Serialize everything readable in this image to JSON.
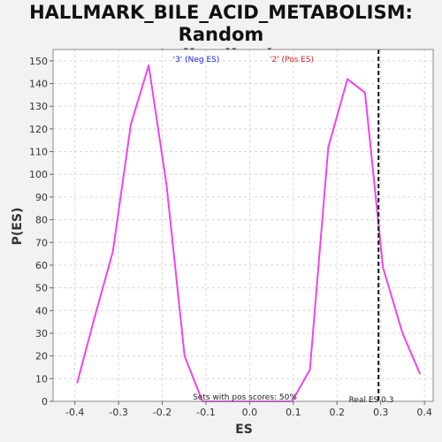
{
  "chart_data": {
    "type": "line",
    "title": "HALLMARK_BILE_ACID_METABOLISM: Random\nES distribution",
    "xlabel": "ES",
    "ylabel": "P(ES)",
    "xlim": [
      -0.45,
      0.42
    ],
    "ylim": [
      0,
      155
    ],
    "xticks": [
      -0.4,
      -0.3,
      -0.2,
      -0.1,
      0.0,
      0.1,
      0.2,
      0.3,
      0.4
    ],
    "xtick_labels": [
      "-0.4",
      "-0.3",
      "-0.2",
      "-0.1",
      "0.0",
      "0.1",
      "0.2",
      "0.3",
      "0.4"
    ],
    "yticks": [
      0,
      10,
      20,
      30,
      40,
      50,
      60,
      70,
      80,
      90,
      100,
      110,
      120,
      130,
      140,
      150
    ],
    "grid": true,
    "series": [
      {
        "color": "#ee44ee",
        "x": [
          -0.395,
          -0.355,
          -0.313,
          -0.272,
          -0.231,
          -0.19,
          -0.149,
          -0.108,
          -0.067,
          -0.026,
          0.015,
          0.056,
          0.097,
          0.138,
          0.18,
          0.224,
          0.264,
          0.305,
          0.35,
          0.39
        ],
        "y": [
          8,
          37,
          66,
          122,
          148,
          95,
          20,
          0,
          0,
          0,
          0,
          0,
          0,
          14,
          112,
          142,
          136,
          59,
          30,
          12
        ]
      }
    ],
    "real_es": 0.295,
    "legend": [
      {
        "label": "'3' (Neg ES)",
        "color": "#2222dd"
      },
      {
        "label": "'2' (Pos ES)",
        "color": "#dd2222"
      }
    ],
    "annotations": {
      "pos_scores": "Sets with pos scores: 50%",
      "real_es": "Real ES 0.3"
    }
  }
}
